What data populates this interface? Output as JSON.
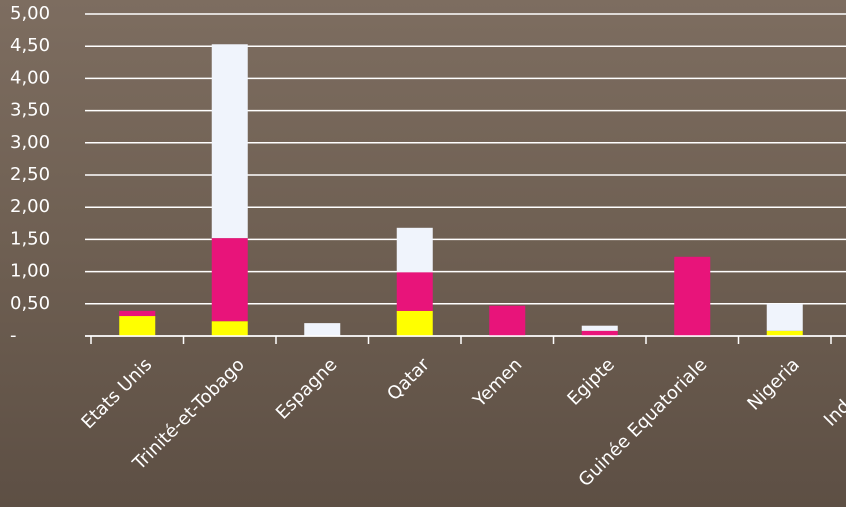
{
  "chart_data": {
    "type": "stacked-bar",
    "categories": [
      "Etats Unis",
      "Trinité-et-Tobago",
      "Espagne",
      "Qatar",
      "Yemen",
      "Egipte",
      "Guinée Equatoriale",
      "Nigeria",
      "Indonésie"
    ],
    "series": [
      {
        "color": "#ffff00",
        "values": [
          0.31,
          0.23,
          0,
          0.39,
          0,
          0,
          0,
          0.08,
          0
        ]
      },
      {
        "color": "#e8147a",
        "values": [
          0.08,
          1.29,
          0,
          0.6,
          0.47,
          0.08,
          1.23,
          0,
          0
        ]
      },
      {
        "color": "#f0f4fc",
        "values": [
          0,
          3.01,
          0.2,
          0.69,
          0,
          0.08,
          0,
          0.42,
          0
        ]
      }
    ],
    "ylim": [
      0,
      5
    ],
    "yticks": [
      {
        "value": 0,
        "label": "-"
      },
      {
        "value": 0.5,
        "label": "0,50"
      },
      {
        "value": 1,
        "label": "1,00"
      },
      {
        "value": 1.5,
        "label": "1,50"
      },
      {
        "value": 2,
        "label": "2,00"
      },
      {
        "value": 2.5,
        "label": "2,50"
      },
      {
        "value": 3,
        "label": "3,00"
      },
      {
        "value": 3.5,
        "label": "3,50"
      },
      {
        "value": 4,
        "label": "4,00"
      },
      {
        "value": 4.5,
        "label": "4,50"
      },
      {
        "value": 5,
        "label": "5,00"
      }
    ],
    "grid": true
  }
}
